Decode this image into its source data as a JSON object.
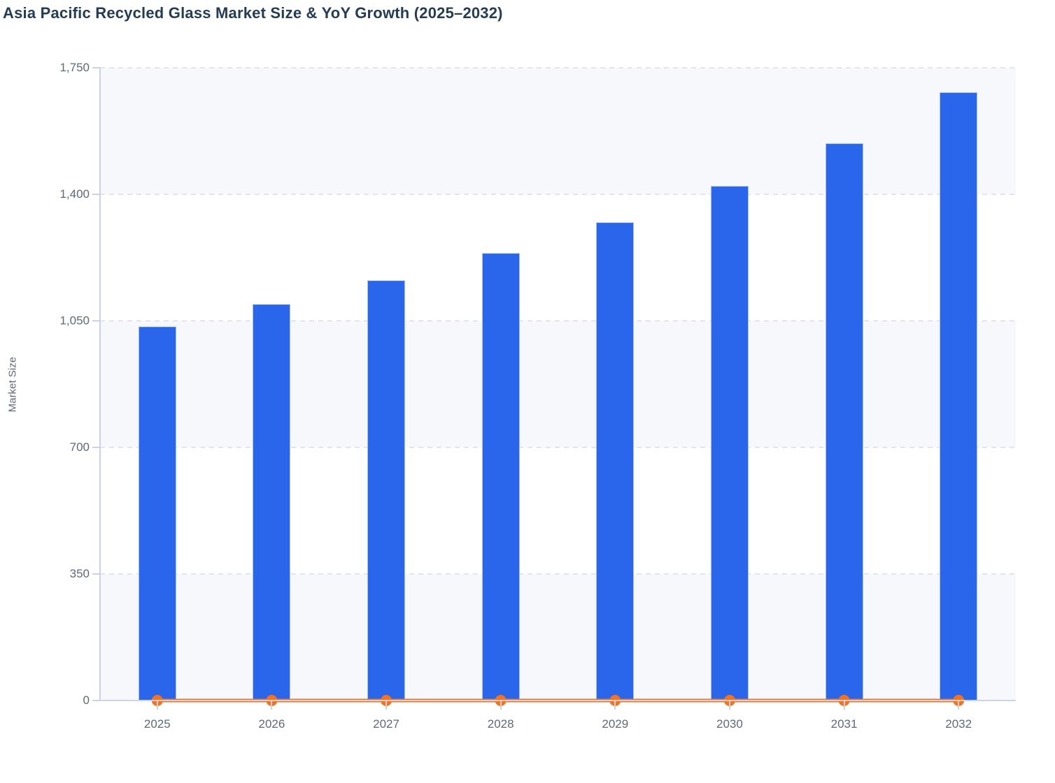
{
  "page": {
    "title": "Asia Pacific Recycled Glass Market Size & YoY Growth (2025–2032)"
  },
  "chart_data": {
    "type": "combo",
    "title": "Asia Pacific Recycled Glass Market Size & YoY Growth (2025–2032)",
    "categories": [
      "2025",
      "2026",
      "2027",
      "2028",
      "2029",
      "2030",
      "2031",
      "2032"
    ],
    "series": [
      {
        "name": "Market Size",
        "type": "bar",
        "color": "#2a66ec",
        "values": [
          1035,
          1097,
          1162,
          1238,
          1323,
          1423,
          1541,
          1682
        ]
      },
      {
        "name": "YoY Growth",
        "type": "line",
        "color": "#f97316",
        "values": [
          0,
          0,
          0,
          0,
          0,
          0,
          0,
          0
        ],
        "note": "line with round markers hugs the zero baseline; growth values are not readable at the Market Size axis scale"
      }
    ],
    "xlabel": "",
    "ylabel": "Market Size",
    "ylim": [
      0,
      1750
    ],
    "yticks": [
      0,
      350,
      700,
      1050,
      1400,
      1750
    ],
    "ytick_labels": [
      "0",
      "350",
      "700",
      "1,050",
      "1,400",
      "1,750"
    ],
    "grid": "dashed horizontal gridlines at each y tick",
    "plot_bands": "alternating horizontal row shading starting shaded below top tick",
    "legend": "none"
  },
  "colors": {
    "bar_fill": "#2a66ec",
    "bar_border": "#a9bef2",
    "line": "#f97316",
    "title_text": "#233c58",
    "axis_text": "#5d6a7a",
    "gridline": "#e3e5ea",
    "band_fill": "#f7f8fb",
    "axis_line": "#c9d2ea",
    "background": "#ffffff"
  }
}
